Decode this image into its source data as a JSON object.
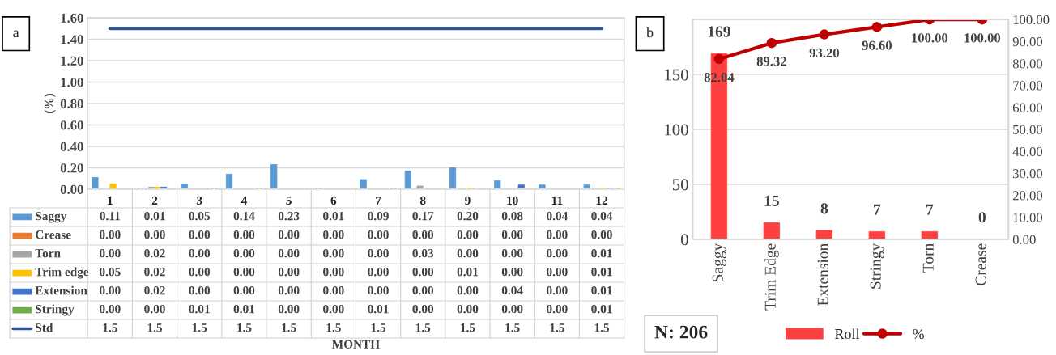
{
  "chart_data": [
    {
      "type": "bar",
      "ylabel": "(%)",
      "xlabel": "MONTH",
      "annotations": [
        "a"
      ],
      "categories": [
        "1",
        "2",
        "3",
        "4",
        "5",
        "6",
        "7",
        "8",
        "9",
        "10",
        "11",
        "12"
      ],
      "series": [
        {
          "name": "Saggy",
          "color": "#5b9bd5",
          "values": [
            0.11,
            0.01,
            0.05,
            0.14,
            0.23,
            0.01,
            0.09,
            0.17,
            0.2,
            0.08,
            0.04,
            0.04
          ],
          "value_labels": [
            "0.11",
            "0.01",
            "0.05",
            "0.14",
            "0.23",
            "0.01",
            "0.09",
            "0.17",
            "0.20",
            "0.08",
            "0.04",
            "0.04"
          ]
        },
        {
          "name": "Crease",
          "color": "#ed7d31",
          "values": [
            0,
            0,
            0,
            0,
            0,
            0,
            0,
            0,
            0,
            0,
            0,
            0
          ],
          "value_labels": [
            "0.00",
            "0.00",
            "0.00",
            "0.00",
            "0.00",
            "0.00",
            "0.00",
            "0.00",
            "0.00",
            "0.00",
            "0.00",
            "0.00"
          ]
        },
        {
          "name": "Torn",
          "color": "#a5a5a5",
          "values": [
            0,
            0.02,
            0,
            0,
            0,
            0,
            0,
            0.03,
            0,
            0,
            0,
            0.01
          ],
          "value_labels": [
            "0.00",
            "0.02",
            "0.00",
            "0.00",
            "0.00",
            "0.00",
            "0.00",
            "0.03",
            "0.00",
            "0.00",
            "0.00",
            "0.01"
          ]
        },
        {
          "name": "Trim edge",
          "color": "#ffc000",
          "values": [
            0.05,
            0.02,
            0,
            0,
            0,
            0,
            0,
            0,
            0.01,
            0,
            0,
            0.01
          ],
          "value_labels": [
            "0.05",
            "0.02",
            "0.00",
            "0.00",
            "0.00",
            "0.00",
            "0.00",
            "0.00",
            "0.01",
            "0.00",
            "0.00",
            "0.01"
          ]
        },
        {
          "name": "Extension",
          "color": "#4472c4",
          "values": [
            0,
            0.02,
            0,
            0,
            0,
            0,
            0,
            0,
            0,
            0.04,
            0,
            0.01
          ],
          "value_labels": [
            "0.00",
            "0.02",
            "0.00",
            "0.00",
            "0.00",
            "0.00",
            "0.00",
            "0.00",
            "0.00",
            "0.04",
            "0.00",
            "0.01"
          ]
        },
        {
          "name": "Stringy",
          "color": "#70ad47",
          "values": [
            0,
            0,
            0.01,
            0.01,
            0,
            0,
            0.01,
            0,
            0,
            0,
            0,
            0.01
          ],
          "value_labels": [
            "0.00",
            "0.00",
            "0.01",
            "0.01",
            "0.00",
            "0.00",
            "0.01",
            "0.00",
            "0.00",
            "0.00",
            "0.00",
            "0.01"
          ]
        },
        {
          "name": "Std",
          "type": "line",
          "color": "#2f5597",
          "values": [
            1.5,
            1.5,
            1.5,
            1.5,
            1.5,
            1.5,
            1.5,
            1.5,
            1.5,
            1.5,
            1.5,
            1.5
          ],
          "value_labels": [
            "1.5",
            "1.5",
            "1.5",
            "1.5",
            "1.5",
            "1.5",
            "1.5",
            "1.5",
            "1.5",
            "1.5",
            "1.5",
            "1.5"
          ]
        }
      ],
      "ylim": [
        0,
        1.6
      ],
      "yticks": [
        {
          "value": 0,
          "label": "0.00"
        },
        {
          "value": 0.2,
          "label": "0.20"
        },
        {
          "value": 0.4,
          "label": "0.40"
        },
        {
          "value": 0.6,
          "label": "0.60"
        },
        {
          "value": 0.8,
          "label": "0.80"
        },
        {
          "value": 1.0,
          "label": "1.00"
        },
        {
          "value": 1.2,
          "label": "1.20"
        },
        {
          "value": 1.4,
          "label": "1.40"
        },
        {
          "value": 1.6,
          "label": "1.60"
        }
      ],
      "grid": "y",
      "legend": "bottom"
    },
    {
      "type": "bar",
      "annotations": [
        "b",
        "N: 206"
      ],
      "categories": [
        "Saggy",
        "Trim Edge",
        "Extension",
        "Stringy",
        "Torn",
        "Crease"
      ],
      "series": [
        {
          "name": "Roll",
          "color": "#ff4040",
          "values": [
            169,
            15,
            8,
            7,
            7,
            0
          ],
          "value_labels": [
            "169",
            "15",
            "8",
            "7",
            "7",
            "0"
          ]
        },
        {
          "name": "%",
          "type": "line",
          "axis": "y2",
          "color": "#c00000",
          "marker": "circle",
          "values": [
            82.04,
            89.32,
            93.2,
            96.6,
            100,
            100
          ],
          "value_labels": [
            "82.04",
            "89.32",
            "93.20",
            "96.60",
            "100.00",
            "100.00"
          ]
        }
      ],
      "ylim": [
        0,
        200
      ],
      "yticks": [
        0,
        50,
        100,
        150,
        {
          "value": 200,
          "label": null
        }
      ],
      "y2lim": [
        0,
        100
      ],
      "y2ticks": [
        {
          "value": 0,
          "label": "0.00"
        },
        {
          "value": 10,
          "label": "10.00"
        },
        {
          "value": 20,
          "label": "20.00"
        },
        {
          "value": 30,
          "label": "30.00"
        },
        {
          "value": 40,
          "label": "40.00"
        },
        {
          "value": 50,
          "label": "50.00"
        },
        {
          "value": 60,
          "label": "60.00"
        },
        {
          "value": 70,
          "label": "70.00"
        },
        {
          "value": 80,
          "label": "80.00"
        },
        {
          "value": 90,
          "label": "90.00"
        },
        {
          "value": 100,
          "label": "100.00"
        }
      ],
      "grid": "y",
      "legend": "bottom"
    }
  ]
}
